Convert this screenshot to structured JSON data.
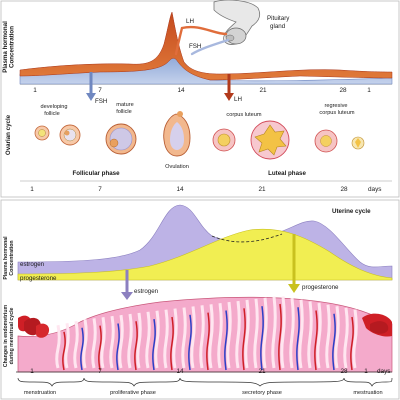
{
  "top": {
    "y_axis_label_line1": "Plasma hormonal",
    "y_axis_label_line2": "Concentration",
    "ovarian_axis_label": "Ovarian cycle",
    "pituitary_label_line1": "Pituitary",
    "pituitary_label_line2": "gland",
    "lh_label": "LH",
    "fsh_label": "FSH",
    "fsh_arrow_label": "FSH",
    "lh_arrow_label": "LH",
    "axis_ticks": [
      "1",
      "7",
      "14",
      "21",
      "28",
      "1"
    ],
    "stages": {
      "developing_follicle_line1": "developing",
      "developing_follicle_line2": "follicle",
      "mature_follicle_line1": "mature",
      "mature_follicle_line2": "follicle",
      "ovulation": "Ovulation",
      "corpus_luteum": "corpus luteum",
      "regressive_line1": "regresive",
      "regressive_line2": "corpus luteum"
    },
    "follicular_phase": "Follicular phase",
    "luteal_phase": "Luteal phase",
    "day_ticks": [
      "1",
      "7",
      "14",
      "21",
      "28"
    ],
    "days_label": "days"
  },
  "bottom": {
    "uterine_cycle": "Uterine cycle",
    "y_axis_label_line1": "Plasma hormonal",
    "y_axis_label_line2": "Concentration",
    "estrogen": "estrogen",
    "progesterone": "progesterone",
    "estrogen_arrow": "estrogen",
    "progesterone_arrow": "progesterone",
    "endometrium_label_line1": "Changes in endometrium",
    "endometrium_label_line2": "during menstrual cycle",
    "day_ticks": [
      "1",
      "7",
      "14",
      "21",
      "28",
      "1"
    ],
    "days_label": "days",
    "phases": {
      "menstruation": "menstruation",
      "proliferative": "proliferative phase",
      "secretory": "secretory phase",
      "menstruation_end": "mestruation"
    }
  },
  "colors": {
    "lh": "#c9401a",
    "fsh": "#7b93c4",
    "estrogen": "#b7aee0",
    "progesterone": "#f2ef52",
    "endometrium": "#f4a9c6",
    "vessel_blue": "#2b3fc7",
    "vessel_red": "#cf1f26"
  }
}
